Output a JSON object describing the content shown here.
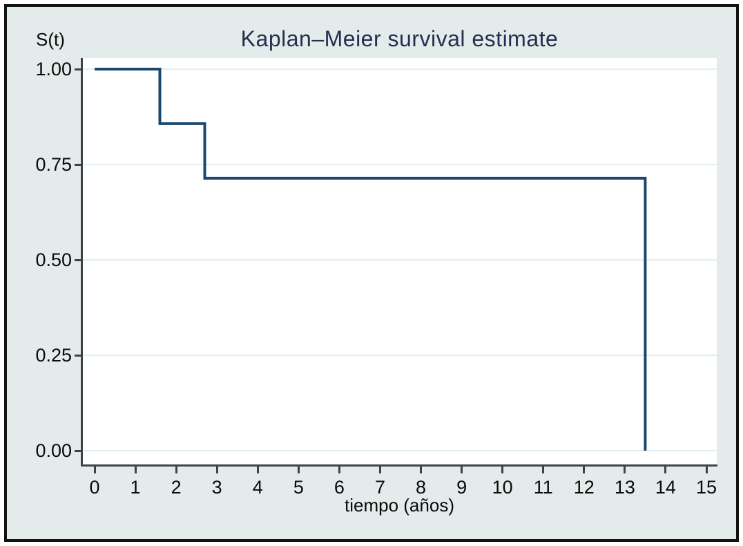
{
  "figure": {
    "kind": "statistical-plot",
    "source_style": "stata-s2color"
  },
  "colors": {
    "canvas-bg": "#e4ebeb",
    "plot-bg": "#ffffff",
    "grid": "#e2eef0",
    "axis": "#3f4347",
    "curve": "#1a476f",
    "title": "#272e4f",
    "text": "#0a0a0a",
    "frame": "#121212"
  },
  "chart_data": {
    "type": "line",
    "subtype": "step-post",
    "title": "Kaplan–Meier survival estimate",
    "xlabel": "tiempo (años)",
    "ylabel": "S(t)",
    "xlim": [
      0,
      15
    ],
    "ylim": [
      0.0,
      1.0
    ],
    "grid": "horizontal",
    "legend": "none",
    "x_ticks": [
      0,
      1,
      2,
      3,
      4,
      5,
      6,
      7,
      8,
      9,
      10,
      11,
      12,
      13,
      14,
      15
    ],
    "y_ticks": [
      {
        "value": 1.0,
        "label": "1.00"
      },
      {
        "value": 0.75,
        "label": "0.75"
      },
      {
        "value": 0.5,
        "label": "0.50"
      },
      {
        "value": 0.25,
        "label": "0.25"
      },
      {
        "value": 0.0,
        "label": "0.00"
      }
    ],
    "series": [
      {
        "name": "Kaplan–Meier survival estimate",
        "color": "#1a476f",
        "steps": [
          {
            "x": 0.0,
            "y": 1.0
          },
          {
            "x": 1.6,
            "y": 0.857
          },
          {
            "x": 2.7,
            "y": 0.714
          },
          {
            "x": 13.5,
            "y": 0.0
          }
        ]
      }
    ]
  }
}
